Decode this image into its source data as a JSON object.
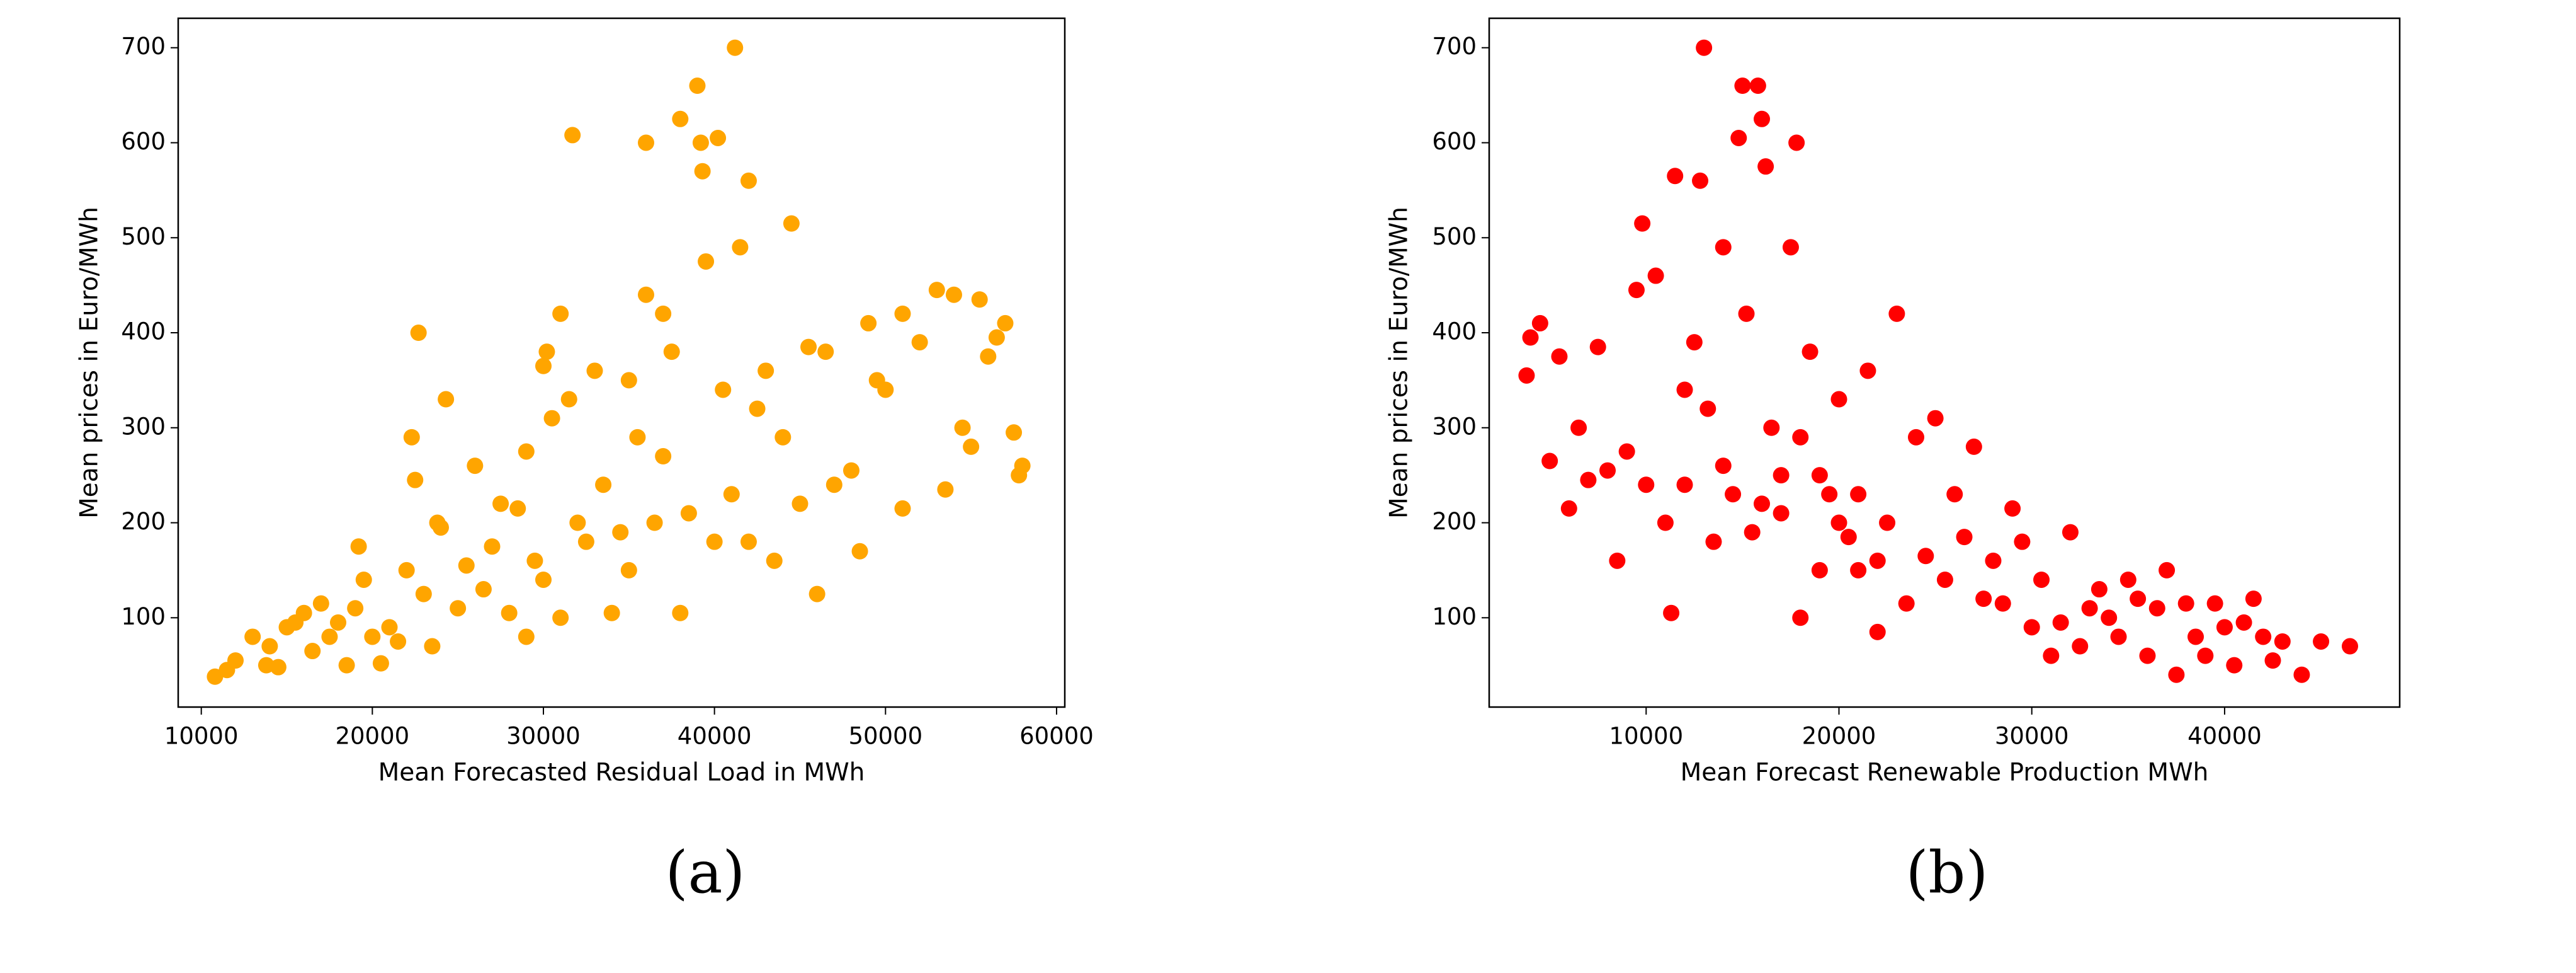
{
  "chart_data": [
    {
      "type": "scatter",
      "caption": "(a)",
      "x_label": "Mean Forecasted Residual Load in MWh",
      "y_label": "Mean prices in Euro/MWh",
      "color": "#FFA500",
      "xlim": [
        8650,
        60480
      ],
      "ylim": [
        6,
        731
      ],
      "xticks": [
        10000,
        20000,
        30000,
        40000,
        50000,
        60000
      ],
      "yticks": [
        100,
        200,
        300,
        400,
        500,
        600,
        700
      ],
      "x": [
        10800,
        11500,
        12000,
        13000,
        13800,
        14000,
        14500,
        15000,
        15500,
        16000,
        16500,
        17000,
        17500,
        18000,
        18500,
        19000,
        19200,
        19500,
        20000,
        20500,
        21000,
        21500,
        22000,
        22300,
        22500,
        22700,
        23000,
        23500,
        23800,
        24000,
        24300,
        25000,
        25500,
        26000,
        26500,
        27000,
        27500,
        28000,
        28500,
        29000,
        29000,
        29500,
        30000,
        30000,
        30200,
        30500,
        31000,
        31000,
        31500,
        31700,
        32000,
        32500,
        33000,
        33500,
        34000,
        34500,
        35000,
        35000,
        35500,
        36000,
        36000,
        36500,
        37000,
        37000,
        37500,
        38000,
        38000,
        38500,
        39000,
        39200,
        39300,
        39500,
        40000,
        40200,
        40500,
        41000,
        41200,
        41500,
        42000,
        42000,
        42500,
        43000,
        43500,
        44000,
        44500,
        45000,
        45500,
        46000,
        46500,
        47000,
        48000,
        48500,
        49000,
        49500,
        50000,
        51000,
        51000,
        52000,
        53000,
        53500,
        54000,
        54500,
        55500,
        56000,
        56500,
        57000,
        57500,
        58000,
        57800,
        55000
      ],
      "values": [
        38,
        45,
        55,
        80,
        50,
        70,
        48,
        90,
        95,
        105,
        65,
        115,
        80,
        95,
        50,
        110,
        175,
        140,
        80,
        52,
        90,
        75,
        150,
        290,
        245,
        400,
        125,
        70,
        200,
        195,
        330,
        110,
        155,
        260,
        130,
        175,
        220,
        105,
        215,
        275,
        80,
        160,
        140,
        365,
        380,
        310,
        100,
        420,
        330,
        608,
        200,
        180,
        360,
        240,
        105,
        190,
        350,
        150,
        290,
        600,
        440,
        200,
        420,
        270,
        380,
        625,
        105,
        210,
        660,
        600,
        570,
        475,
        180,
        605,
        340,
        230,
        700,
        490,
        560,
        180,
        320,
        360,
        160,
        290,
        515,
        220,
        385,
        125,
        380,
        240,
        255,
        170,
        410,
        350,
        340,
        420,
        215,
        390,
        445,
        235,
        440,
        300,
        435,
        375,
        395,
        410,
        295,
        260,
        250,
        280
      ]
    },
    {
      "type": "scatter",
      "caption": "(b)",
      "x_label": "Mean Forecast Renewable Production MWh",
      "y_label": "Mean prices in Euro/MWh",
      "color": "#FF0000",
      "xlim": [
        1860,
        49080
      ],
      "ylim": [
        6,
        731
      ],
      "xticks": [
        10000,
        20000,
        30000,
        40000
      ],
      "yticks": [
        100,
        200,
        300,
        400,
        500,
        600,
        700
      ],
      "x": [
        3800,
        4000,
        4500,
        5000,
        5500,
        6000,
        6500,
        7000,
        7500,
        8000,
        8500,
        9000,
        9500,
        9800,
        10000,
        10500,
        11000,
        11300,
        11500,
        12000,
        12500,
        12800,
        13000,
        13200,
        13500,
        14000,
        14500,
        14800,
        15000,
        15200,
        15500,
        15800,
        16000,
        16200,
        16500,
        17000,
        17500,
        17800,
        18000,
        18500,
        19000,
        19500,
        20000,
        20500,
        21000,
        21500,
        22000,
        22500,
        23000,
        23500,
        24000,
        24500,
        25000,
        25500,
        26000,
        26500,
        27000,
        27500,
        28000,
        28500,
        29000,
        29500,
        30000,
        30500,
        31000,
        31500,
        32000,
        32500,
        33000,
        33500,
        34000,
        34500,
        35000,
        35500,
        36000,
        36500,
        37000,
        37500,
        38000,
        38500,
        39000,
        39500,
        40000,
        40500,
        41000,
        41500,
        42000,
        42500,
        43000,
        44000,
        45000,
        46500,
        17000,
        18000,
        16000,
        14000,
        20000,
        21000,
        12000,
        22000,
        19000
      ],
      "values": [
        355,
        395,
        410,
        265,
        375,
        215,
        300,
        245,
        385,
        255,
        160,
        275,
        445,
        515,
        240,
        460,
        200,
        105,
        565,
        340,
        390,
        560,
        700,
        320,
        180,
        490,
        230,
        605,
        660,
        420,
        190,
        660,
        625,
        575,
        300,
        210,
        490,
        600,
        100,
        380,
        250,
        230,
        330,
        185,
        150,
        360,
        85,
        200,
        420,
        115,
        290,
        165,
        310,
        140,
        230,
        185,
        280,
        120,
        160,
        115,
        215,
        180,
        90,
        140,
        60,
        95,
        190,
        70,
        110,
        130,
        100,
        80,
        140,
        120,
        60,
        110,
        150,
        40,
        115,
        80,
        60,
        115,
        90,
        50,
        95,
        120,
        80,
        55,
        75,
        40,
        75,
        70,
        250,
        290,
        220,
        260,
        200,
        230,
        240,
        160,
        150
      ]
    }
  ]
}
